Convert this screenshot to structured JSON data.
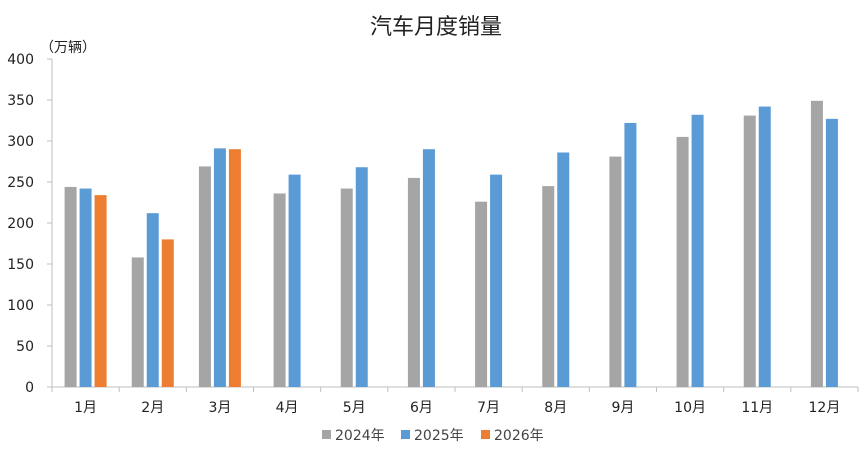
{
  "chart_data": {
    "type": "bar",
    "title": "汽车月度销量",
    "ylabel": "（万辆）",
    "xlabel": "",
    "categories": [
      "1月",
      "2月",
      "3月",
      "4月",
      "5月",
      "6月",
      "7月",
      "8月",
      "9月",
      "10月",
      "11月",
      "12月"
    ],
    "ylim": [
      0,
      400
    ],
    "yticks": [
      0,
      50,
      100,
      150,
      200,
      250,
      300,
      350,
      400
    ],
    "grid": false,
    "legend_position": "bottom",
    "series": [
      {
        "name": "2024年",
        "color": "#a5a5a5",
        "values": [
          244,
          158,
          269,
          236,
          242,
          255,
          226,
          245,
          281,
          305,
          331,
          349
        ]
      },
      {
        "name": "2025年",
        "color": "#5b9bd5",
        "values": [
          242,
          212,
          291,
          259,
          268,
          290,
          259,
          286,
          322,
          332,
          342,
          327
        ]
      },
      {
        "name": "2026年",
        "color": "#ed7d31",
        "values": [
          234,
          180,
          290,
          null,
          null,
          null,
          null,
          null,
          null,
          null,
          null,
          null
        ]
      }
    ]
  }
}
